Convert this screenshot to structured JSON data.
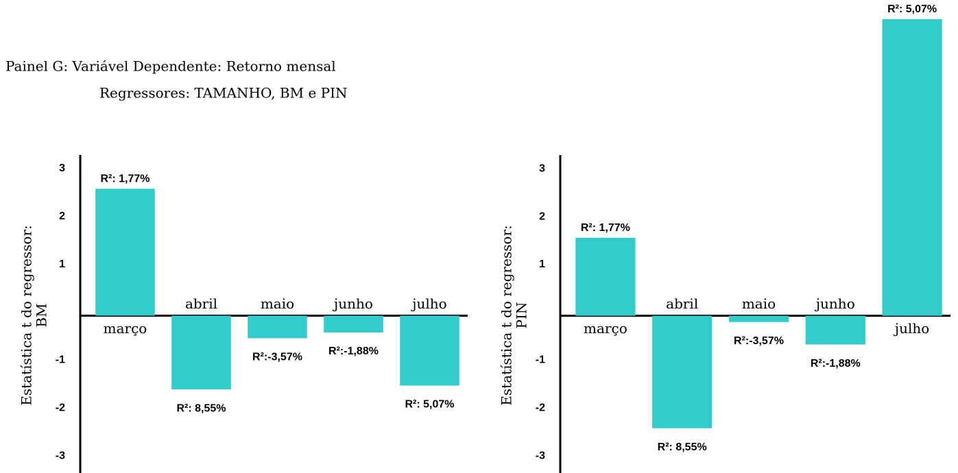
{
  "header": {
    "title": "Painel G: Variável Dependente: Retorno mensal",
    "subtitle": "Regressores: TAMANHO, BM e PIN"
  },
  "chart_data": [
    {
      "type": "bar",
      "y_label": [
        "Estatística t do regressor:",
        "BM"
      ],
      "categories": [
        "março",
        "abril",
        "maio",
        "junho",
        "julho"
      ],
      "values": [
        2.65,
        -1.54,
        -0.47,
        -0.35,
        -1.46
      ],
      "annotations": [
        "R²: 1,77%",
        "R²: 8,55%",
        "R²:-3,57%",
        "R²:-1,88%",
        "R²: 5,07%"
      ],
      "color": "#33cccc",
      "ylim": [
        -3.3,
        3.3
      ],
      "yticks": [
        -3,
        -2,
        -1,
        1,
        2,
        3
      ]
    },
    {
      "type": "bar",
      "y_label": [
        "Estatística t do regressor:",
        "PIN"
      ],
      "categories": [
        "março",
        "abril",
        "maio",
        "junho",
        "julho"
      ],
      "values": [
        1.63,
        -2.35,
        -0.13,
        -0.6,
        6.2
      ],
      "annotations": [
        "R²: 1,77%",
        "R²: 8,55%",
        "R²:-3,57%",
        "R²:-1,88%",
        "R²: 5,07%"
      ],
      "color": "#33cccc",
      "ylim": [
        -3.3,
        6.6
      ],
      "yticks": [
        -3,
        -2,
        -1,
        1,
        2,
        3
      ]
    }
  ]
}
